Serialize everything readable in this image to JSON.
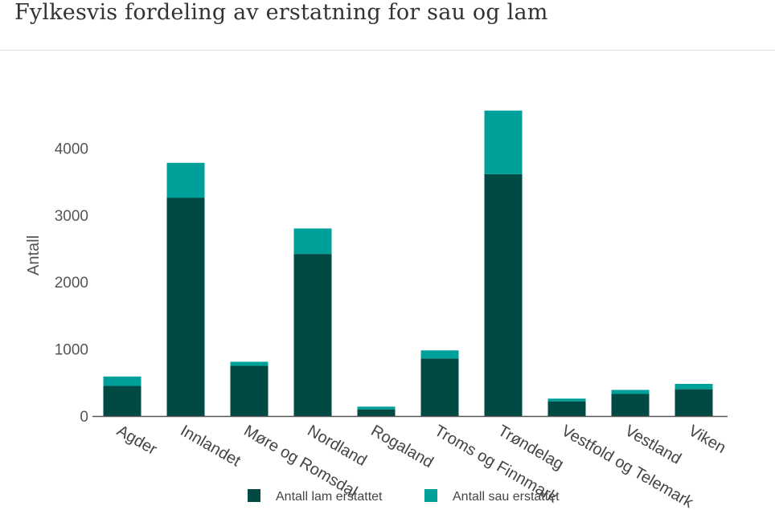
{
  "page": {
    "title": "Fylkesvis fordeling av erstatning for sau og lam"
  },
  "colors": {
    "lam": "#004a43",
    "sau": "#00a09a",
    "axis": "#555555",
    "text": "#444444"
  },
  "chart_data": {
    "type": "bar",
    "stacked": true,
    "title": "Fylkesvis fordeling av erstatning for sau og lam",
    "xlabel": "",
    "ylabel": "Antall",
    "ylim": [
      0,
      4700
    ],
    "yticks": [
      0,
      1000,
      2000,
      3000,
      4000
    ],
    "categories": [
      "Agder",
      "Innlandet",
      "Møre og Romsdal",
      "Nordland",
      "Rogaland",
      "Troms og Finnmark",
      "Trøndelag",
      "Vestfold og Telemark",
      "Vestland",
      "Viken"
    ],
    "series": [
      {
        "name": "Antall lam erstattet",
        "values": [
          450,
          3260,
          750,
          2420,
          100,
          860,
          3610,
          220,
          330,
          400
        ]
      },
      {
        "name": "Antall sau erstattet",
        "values": [
          140,
          520,
          60,
          380,
          40,
          120,
          950,
          40,
          60,
          80
        ]
      }
    ],
    "legend": "bottom-center"
  }
}
